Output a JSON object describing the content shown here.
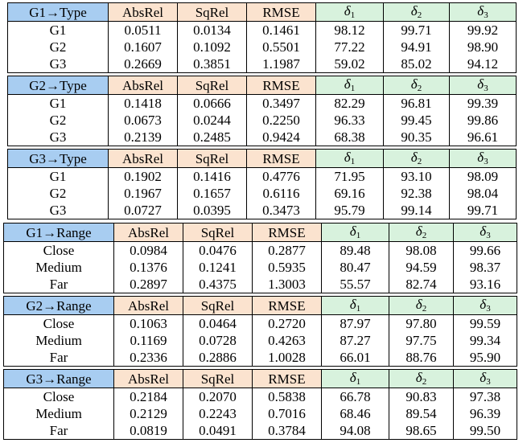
{
  "colors": {
    "label_header": "#a8cdf1",
    "error_header": "#fbe3cf",
    "accuracy_header": "#d8f2dd"
  },
  "columns": [
    "AbsRel",
    "SqRel",
    "RMSE",
    "δ1",
    "δ2",
    "δ3"
  ],
  "arrow": "→",
  "blocks": [
    {
      "group": "G1",
      "kind": "Type",
      "rows": [
        {
          "label": "G1",
          "values": [
            "0.0511",
            "0.0134",
            "0.1461",
            "98.12",
            "99.71",
            "99.92"
          ]
        },
        {
          "label": "G2",
          "values": [
            "0.1607",
            "0.1092",
            "0.5501",
            "77.22",
            "94.91",
            "98.90"
          ]
        },
        {
          "label": "G3",
          "values": [
            "0.2669",
            "0.3851",
            "1.1987",
            "59.02",
            "85.02",
            "94.12"
          ]
        }
      ]
    },
    {
      "group": "G2",
      "kind": "Type",
      "rows": [
        {
          "label": "G1",
          "values": [
            "0.1418",
            "0.0666",
            "0.3497",
            "82.29",
            "96.81",
            "99.39"
          ]
        },
        {
          "label": "G2",
          "values": [
            "0.0673",
            "0.0244",
            "0.2250",
            "96.33",
            "99.45",
            "99.86"
          ]
        },
        {
          "label": "G3",
          "values": [
            "0.2139",
            "0.2485",
            "0.9424",
            "68.38",
            "90.35",
            "96.61"
          ]
        }
      ]
    },
    {
      "group": "G3",
      "kind": "Type",
      "rows": [
        {
          "label": "G1",
          "values": [
            "0.1902",
            "0.1416",
            "0.4776",
            "71.95",
            "93.10",
            "98.09"
          ]
        },
        {
          "label": "G2",
          "values": [
            "0.1967",
            "0.1657",
            "0.6116",
            "69.16",
            "92.38",
            "98.04"
          ]
        },
        {
          "label": "G3",
          "values": [
            "0.0727",
            "0.0395",
            "0.3473",
            "95.79",
            "99.14",
            "99.71"
          ]
        }
      ]
    },
    {
      "group": "G1",
      "kind": "Range",
      "rows": [
        {
          "label": "Close",
          "values": [
            "0.0984",
            "0.0476",
            "0.2877",
            "89.48",
            "98.08",
            "99.66"
          ]
        },
        {
          "label": "Medium",
          "values": [
            "0.1376",
            "0.1241",
            "0.5935",
            "80.47",
            "94.59",
            "98.37"
          ]
        },
        {
          "label": "Far",
          "values": [
            "0.2897",
            "0.4375",
            "1.3003",
            "55.57",
            "82.74",
            "93.16"
          ]
        }
      ]
    },
    {
      "group": "G2",
      "kind": "Range",
      "rows": [
        {
          "label": "Close",
          "values": [
            "0.1063",
            "0.0464",
            "0.2720",
            "87.97",
            "97.80",
            "99.59"
          ]
        },
        {
          "label": "Medium",
          "values": [
            "0.1169",
            "0.0728",
            "0.4263",
            "87.27",
            "97.75",
            "99.34"
          ]
        },
        {
          "label": "Far",
          "values": [
            "0.2336",
            "0.2886",
            "1.0028",
            "66.01",
            "88.76",
            "95.90"
          ]
        }
      ]
    },
    {
      "group": "G3",
      "kind": "Range",
      "rows": [
        {
          "label": "Close",
          "values": [
            "0.2184",
            "0.2070",
            "0.5838",
            "66.78",
            "90.83",
            "97.38"
          ]
        },
        {
          "label": "Medium",
          "values": [
            "0.2129",
            "0.2243",
            "0.7016",
            "68.46",
            "89.54",
            "96.39"
          ]
        },
        {
          "label": "Far",
          "values": [
            "0.0819",
            "0.0491",
            "0.3784",
            "94.08",
            "98.65",
            "99.50"
          ]
        }
      ]
    }
  ]
}
